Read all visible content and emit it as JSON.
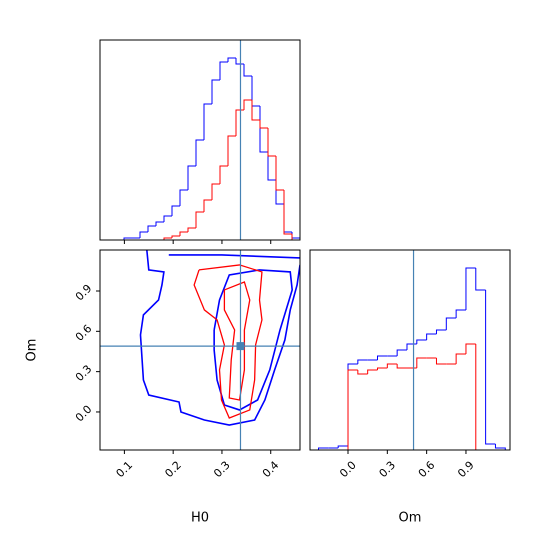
{
  "chart_data": [
    {
      "type": "histogram",
      "bins": [
        0.05,
        0.0664,
        0.0828,
        0.0992,
        0.1156,
        0.132,
        0.1484,
        0.1648,
        0.1812,
        0.1976,
        0.214,
        0.2304,
        0.2468,
        0.2632,
        0.2796,
        0.296,
        0.3124,
        0.3288,
        0.3452,
        0.3616,
        0.378,
        0.3944,
        0.4108,
        0.4272,
        0.4436,
        0.46
      ],
      "series": [
        {
          "color": "#0000ff",
          "values": [
            0,
            0,
            0,
            0.01,
            0.01,
            0.04,
            0.07,
            0.09,
            0.12,
            0.17,
            0.25,
            0.37,
            0.5,
            0.68,
            0.8,
            0.89,
            0.91,
            0.88,
            0.82,
            0.67,
            0.44,
            0.3,
            0.18,
            0.04,
            0.01
          ]
        },
        {
          "color": "#ff0000",
          "values": [
            0,
            0,
            0,
            0,
            0,
            0,
            0,
            0,
            0.01,
            0.02,
            0.04,
            0.06,
            0.14,
            0.2,
            0.28,
            0.37,
            0.52,
            0.65,
            0.7,
            0.6,
            0.56,
            0.42,
            0.25,
            0.03,
            0
          ]
        }
      ],
      "xlim": [
        0.05,
        0.46
      ],
      "ylim": [
        0,
        1
      ],
      "xticks": [
        0.1,
        0.2,
        0.3,
        0.4
      ],
      "truth": 0.338,
      "truth_color": "#4682b4"
    },
    {
      "type": "contour",
      "x_label": "H0",
      "y_label": "Om",
      "xlim": [
        0.05,
        0.46
      ],
      "ylim": [
        -0.283,
        1.205
      ],
      "xticks": [
        0.1,
        0.2,
        0.3,
        0.4
      ],
      "yticks": [
        {
          "value": 0,
          "label": "0.0"
        },
        0.3,
        0.6,
        0.9
      ],
      "contours": [
        {
          "color": "#0000ff",
          "x": [
            0.146,
            0.15,
            0.181,
            0.177,
            0.17,
            0.139,
            0.133,
            0.139,
            0.15,
            0.212,
            0.216,
            0.264,
            0.315,
            0.367,
            0.388,
            0.408,
            0.429,
            0.44,
            0.454,
            0.46
          ],
          "y": [
            1.205,
            1.057,
            1.042,
            0.945,
            0.833,
            0.722,
            0.573,
            0.238,
            0.126,
            0.074,
            0,
            -0.06,
            -0.097,
            -0.06,
            0.089,
            0.313,
            0.536,
            0.759,
            0.945,
            1.094
          ]
        },
        {
          "color": "#0000ff",
          "x": [
            0.191,
            0.3,
            0.46
          ],
          "y": [
            1.168,
            1.168,
            1.146
          ]
        },
        {
          "color": "#0000ff",
          "x": [
            0.284,
            0.295,
            0.315,
            0.377,
            0.44,
            0.444,
            0.419,
            0.398,
            0.373,
            0.336,
            0.305,
            0.29,
            0.284,
            0.284
          ],
          "y": [
            0.61,
            0.833,
            1.019,
            1.057,
            1.042,
            0.908,
            0.61,
            0.313,
            0.089,
            0.015,
            0.052,
            0.238,
            0.461,
            0.61
          ]
        },
        {
          "color": "#ff0000",
          "x": [
            0.253,
            0.336,
            0.382,
            0.377,
            0.382,
            0.369,
            0.367,
            0.357,
            0.315,
            0.299,
            0.295,
            0.305,
            0.29,
            0.264,
            0.243,
            0.253
          ],
          "y": [
            1.057,
            1.094,
            1.042,
            0.833,
            0.685,
            0.499,
            0.238,
            0.015,
            -0.045,
            0.089,
            0.313,
            0.499,
            0.685,
            0.759,
            0.945,
            1.057
          ]
        },
        {
          "color": "#ff0000",
          "x": [
            0.305,
            0.346,
            0.357,
            0.346,
            0.346,
            0.336,
            0.315,
            0.319,
            0.326,
            0.305,
            0.305
          ],
          "y": [
            0.908,
            0.967,
            0.833,
            0.61,
            0.313,
            0.089,
            0.104,
            0.387,
            0.61,
            0.759,
            0.908
          ]
        }
      ],
      "truth": [
        0.338,
        0.49
      ],
      "truth_color": "#4682b4"
    },
    {
      "type": "histogram",
      "x_label": "Om",
      "bins": [
        -0.225,
        -0.15,
        -0.075,
        0,
        0.075,
        0.15,
        0.225,
        0.3,
        0.375,
        0.45,
        0.525,
        0.6,
        0.675,
        0.75,
        0.825,
        0.9,
        0.975,
        1.05,
        1.125,
        1.2
      ],
      "series": [
        {
          "color": "#0000ff",
          "values": [
            0.01,
            0.01,
            0.02,
            0.43,
            0.45,
            0.45,
            0.47,
            0.47,
            0.5,
            0.53,
            0.55,
            0.58,
            0.6,
            0.66,
            0.7,
            0.91,
            0.8,
            0.03,
            0.01
          ]
        },
        {
          "color": "#ff0000",
          "values": [
            0,
            0,
            0,
            0.4,
            0.38,
            0.4,
            0.41,
            0.43,
            0.41,
            0.41,
            0.46,
            0.46,
            0.43,
            0.43,
            0.48,
            0.53,
            0,
            0,
            0
          ]
        }
      ],
      "xlim": [
        -0.29,
        1.236
      ],
      "ylim": [
        0,
        1
      ],
      "xticks": [
        {
          "value": 0,
          "label": "0.0"
        },
        0.3,
        0.6,
        0.9
      ],
      "truth": 0.5,
      "truth_color": "#4682b4"
    }
  ]
}
